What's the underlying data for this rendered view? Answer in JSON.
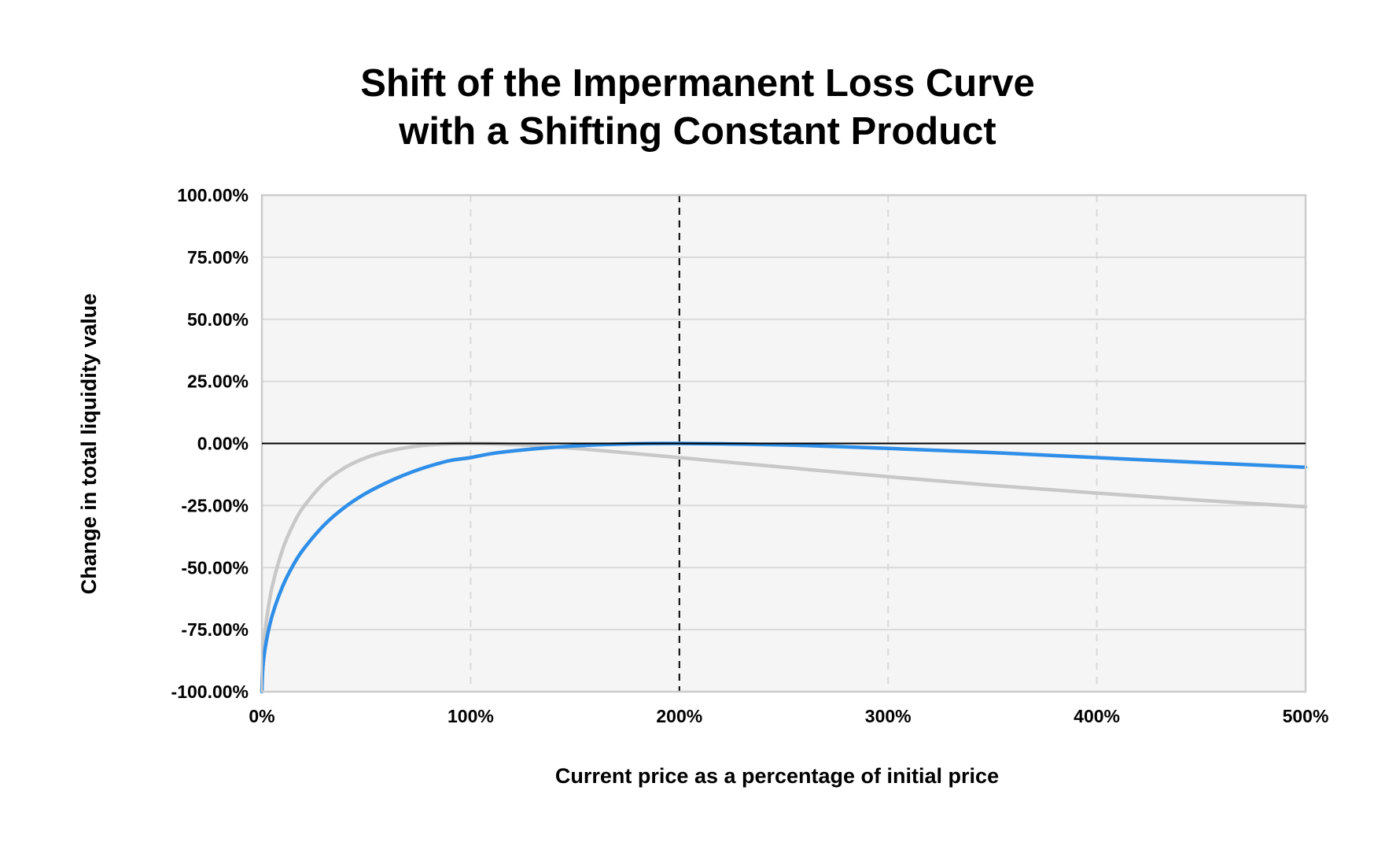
{
  "chart_data": {
    "type": "line",
    "title_lines": [
      "Shift of the Impermanent Loss Curve",
      "with a Shifting Constant Product"
    ],
    "xlabel": "Current price as a percentage of initial price",
    "ylabel": "Change in total liquidity value",
    "xlim": [
      0,
      500
    ],
    "ylim": [
      -100,
      100
    ],
    "x_ticks": [
      0,
      100,
      200,
      300,
      400,
      500
    ],
    "x_tick_labels": [
      "0%",
      "100%",
      "200%",
      "300%",
      "400%",
      "500%"
    ],
    "y_ticks": [
      100,
      75,
      50,
      25,
      0,
      -25,
      -50,
      -75,
      -100
    ],
    "y_tick_labels": [
      "100.00%",
      "75.00%",
      "50.00%",
      "25.00%",
      "0.00%",
      "-25.00%",
      "-50.00%",
      "-75.00%",
      "-100.00%"
    ],
    "grid": true,
    "x_grid_style": "dashed",
    "reference_line_x": 200,
    "zero_line_y": 0,
    "colors": {
      "plot_background": "#f5f5f5",
      "grid": "#d9d9d9",
      "axis_border": "#cccccc",
      "zero_line": "#000000",
      "reference_line": "#000000"
    },
    "series": [
      {
        "color": "#c8c8c8",
        "x": [
          0.5,
          2,
          5,
          10,
          15,
          20,
          30,
          40,
          50,
          60,
          70,
          80,
          90,
          100,
          110,
          125,
          150,
          175,
          200,
          250,
          300,
          350,
          400,
          450,
          500
        ],
        "y": [
          -85.9,
          -72.3,
          -57.4,
          -42.5,
          -32.7,
          -25.5,
          -15.7,
          -9.6,
          -5.7,
          -3.2,
          -1.6,
          -0.6,
          -0.1,
          0,
          -0.1,
          -0.6,
          -2.0,
          -3.8,
          -5.7,
          -9.6,
          -13.4,
          -16.9,
          -20.0,
          -22.9,
          -25.5
        ]
      },
      {
        "color": "#2e8ee8",
        "x": [
          0.5,
          2,
          5,
          10,
          15,
          20,
          30,
          40,
          50,
          60,
          70,
          80,
          90,
          100,
          110,
          125,
          150,
          175,
          200,
          250,
          300,
          350,
          400,
          450,
          500
        ],
        "y": [
          -90.0,
          -80.2,
          -69.1,
          -57.4,
          -49.0,
          -42.5,
          -32.7,
          -25.5,
          -20.0,
          -15.7,
          -12.1,
          -9.2,
          -6.9,
          -5.7,
          -4.1,
          -2.6,
          -1.0,
          -0.2,
          0,
          -0.6,
          -2.0,
          -3.7,
          -5.7,
          -7.7,
          -9.6
        ]
      }
    ]
  }
}
